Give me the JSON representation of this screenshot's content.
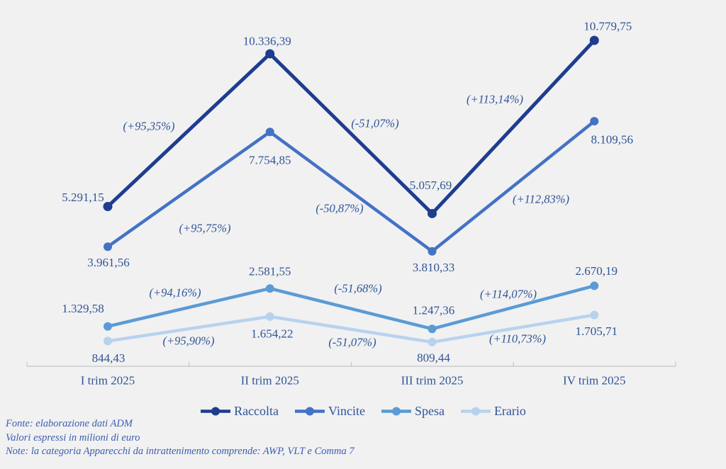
{
  "colors": {
    "background": "#F1F1F2",
    "text": "#2F5496",
    "axis": "#C7C7C7",
    "footnote": "#3B5EAC"
  },
  "chart_data": {
    "type": "line",
    "title": "",
    "categories": [
      "I trim 2025",
      "II trim 2025",
      "III trim 2025",
      "IV trim 2025"
    ],
    "series": [
      {
        "name": "Raccolta",
        "color": "#1E3D8F",
        "values": [
          5291.15,
          10336.39,
          5057.69,
          10779.75
        ],
        "labels": [
          "5.291,15",
          "10.336,39",
          "5.057,69",
          "10.779,75"
        ],
        "pct_changes": [
          "(+95,35%)",
          "(-51,07%)",
          "(+113,14%)"
        ]
      },
      {
        "name": "Vincite",
        "color": "#4472C4",
        "values": [
          3961.56,
          7754.85,
          3810.33,
          8109.56
        ],
        "labels": [
          "3.961,56",
          "7.754,85",
          "3.810,33",
          "8.109,56"
        ],
        "pct_changes": [
          "(+95,75%)",
          "(-50,87%)",
          "(+112,83%)"
        ]
      },
      {
        "name": "Spesa",
        "color": "#5B9BD5",
        "values": [
          1329.58,
          2581.55,
          1247.36,
          2670.19
        ],
        "labels": [
          "1.329,58",
          "2.581,55",
          "1.247,36",
          "2.670,19"
        ],
        "pct_changes": [
          "(+94,16%)",
          "(-51,68%)",
          "(+114,07%)"
        ]
      },
      {
        "name": "Erario",
        "color": "#B8D2EE",
        "values": [
          844.43,
          1654.22,
          809.44,
          1705.71
        ],
        "labels": [
          "844,43",
          "1.654,22",
          "809,44",
          "1.705,71"
        ],
        "pct_changes": [
          "(+95,90%)",
          "(-51,07%)",
          "(+110,73%)"
        ]
      }
    ],
    "ylim": [
      0,
      10779.75
    ],
    "xlabel": "",
    "ylabel": "",
    "grid": false,
    "legend_position": "bottom"
  },
  "notes": {
    "fonte": "Fonte: elaborazione dati ADM",
    "valori": "Valori espressi in milioni di euro",
    "note": "Note: la categoria Apparecchi da intrattenimento comprende: AWP, VLT e Comma 7"
  }
}
